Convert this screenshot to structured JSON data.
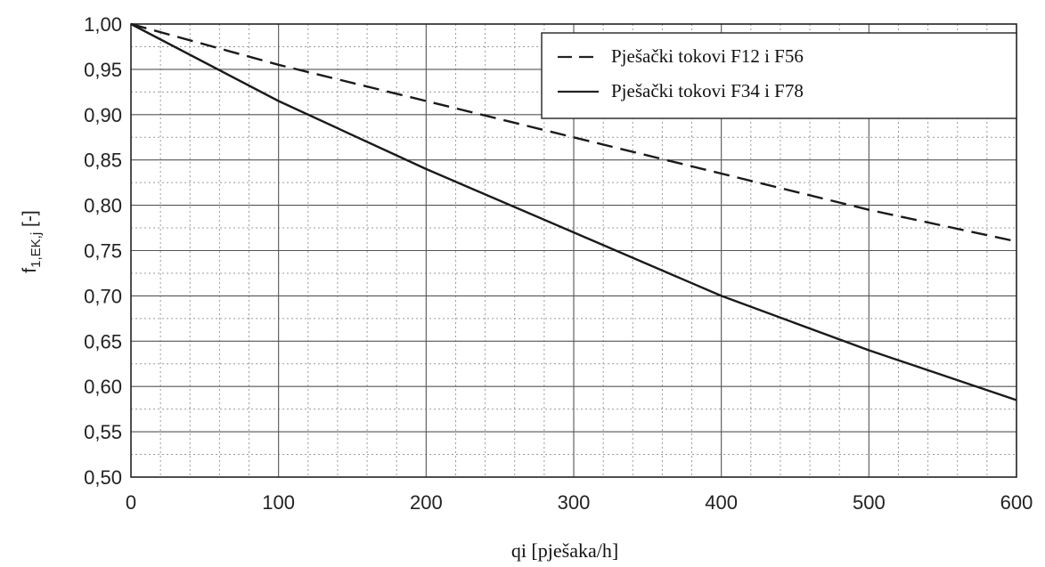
{
  "chart_data": {
    "type": "line",
    "title": "",
    "xlabel": "qi [pješaka/h]",
    "ylabel_main": "f",
    "ylabel_sub": "1,EK,j",
    "ylabel_suffix": " [-]",
    "xlim": [
      0,
      600
    ],
    "ylim": [
      0.5,
      1.0
    ],
    "x_ticks": [
      0,
      100,
      200,
      300,
      400,
      500,
      600
    ],
    "x_tick_labels": [
      "0",
      "100",
      "200",
      "300",
      "400",
      "500",
      "600"
    ],
    "y_ticks": [
      0.5,
      0.55,
      0.6,
      0.65,
      0.7,
      0.75,
      0.8,
      0.85,
      0.9,
      0.95,
      1.0
    ],
    "y_tick_labels": [
      "0,50",
      "0,55",
      "0,60",
      "0,65",
      "0,70",
      "0,75",
      "0,80",
      "0,85",
      "0,90",
      "0,95",
      "1,00"
    ],
    "grid": true,
    "legend_position": "top-right",
    "series": [
      {
        "name": "Pješački tokovi F12 i F56",
        "style": "dashed",
        "x": [
          0,
          100,
          200,
          300,
          400,
          500,
          600
        ],
        "y": [
          1.0,
          0.955,
          0.915,
          0.875,
          0.835,
          0.795,
          0.76
        ]
      },
      {
        "name": "Pješački tokovi F34 i F78",
        "style": "solid",
        "x": [
          0,
          100,
          200,
          300,
          400,
          500,
          600
        ],
        "y": [
          1.0,
          0.915,
          0.84,
          0.77,
          0.7,
          0.64,
          0.585
        ]
      }
    ]
  }
}
